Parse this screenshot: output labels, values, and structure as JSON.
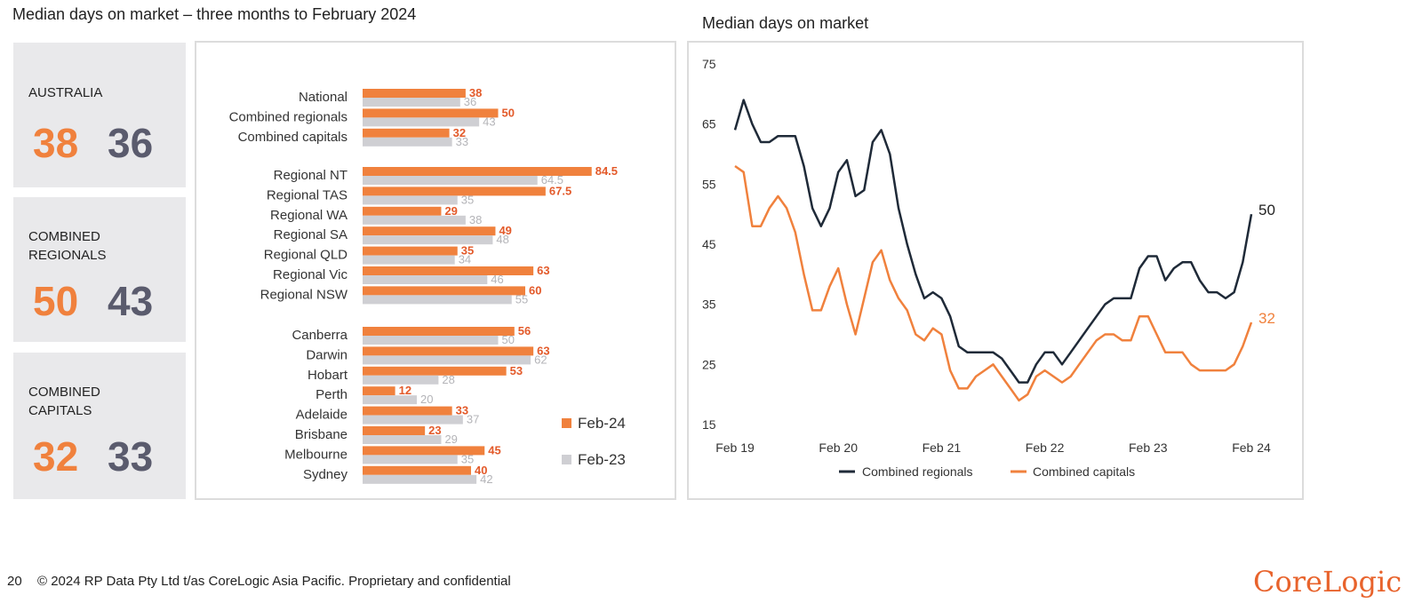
{
  "page": {
    "title": "Median days on market – three months to February 2024",
    "footer_page_number": "20",
    "footer_copyright": "© 2024 RP Data Pty Ltd t/as CoreLogic Asia Pacific. Proprietary and confidential",
    "logo_text": "CoreLogic"
  },
  "colors": {
    "feb24": "#f0813d",
    "feb23": "#cfcfd3",
    "regional_line": "#1f2a38",
    "capitals_line": "#f0813d",
    "prev_text": "#5a5b6d"
  },
  "kpis": [
    {
      "label": "AUSTRALIA",
      "current": "38",
      "previous": "36"
    },
    {
      "label": "COMBINED\nREGIONALS",
      "current": "50",
      "previous": "43"
    },
    {
      "label": "COMBINED\nCAPITALS",
      "current": "32",
      "previous": "33"
    }
  ],
  "chart_data": [
    {
      "type": "bar",
      "orientation": "horizontal",
      "title": "Median days on market – three months to February 2024",
      "categories": [
        "National",
        "Combined regionals",
        "Combined capitals",
        "Regional NT",
        "Regional TAS",
        "Regional WA",
        "Regional SA",
        "Regional QLD",
        "Regional Vic",
        "Regional NSW",
        "Canberra",
        "Darwin",
        "Hobart",
        "Perth",
        "Adelaide",
        "Brisbane",
        "Melbourne",
        "Sydney"
      ],
      "groups": [
        3,
        7,
        8
      ],
      "series": [
        {
          "name": "Feb-24",
          "values": [
            38,
            50,
            32,
            84.5,
            67.5,
            29,
            49,
            35,
            63,
            60,
            56,
            63,
            53,
            12,
            33,
            23,
            45,
            40
          ],
          "labels": [
            "38",
            "50",
            "32",
            "84.5",
            "67.5",
            "29",
            "49",
            "35",
            "63",
            "60",
            "56",
            "63",
            "53",
            "12",
            "33",
            "23",
            "45",
            "40"
          ]
        },
        {
          "name": "Feb-23",
          "values": [
            36,
            43,
            33,
            64.5,
            35,
            38,
            48,
            34,
            46,
            55,
            50,
            62,
            28,
            20,
            37,
            29,
            35,
            42
          ],
          "labels": [
            "36",
            "43",
            "33",
            "64.5",
            "35",
            "38",
            "48",
            "34",
            "46",
            "55",
            "50",
            "62",
            "28",
            "20",
            "37",
            "29",
            "35",
            "42"
          ]
        }
      ],
      "xlim": [
        0,
        90
      ],
      "legend": "bottom-right"
    },
    {
      "type": "line",
      "title": "Median days on market",
      "x_tick_labels": [
        "Feb 19",
        "Feb 20",
        "Feb 21",
        "Feb 22",
        "Feb 23",
        "Feb 24"
      ],
      "x_tick_months": [
        0,
        12,
        24,
        36,
        48,
        60
      ],
      "y_ticks": [
        75,
        65,
        55,
        45,
        35,
        25,
        15
      ],
      "ylim": [
        15,
        75
      ],
      "series": [
        {
          "name": "Combined regionals",
          "end_label": "50",
          "values": [
            64,
            69,
            65,
            62,
            62,
            63,
            63,
            63,
            58,
            51,
            48,
            51,
            57,
            59,
            53,
            54,
            62,
            64,
            60,
            51,
            45,
            40,
            36,
            37,
            36,
            33,
            28,
            27,
            27,
            27,
            27,
            26,
            24,
            22,
            22,
            25,
            27,
            27,
            25,
            27,
            29,
            31,
            33,
            35,
            36,
            36,
            36,
            41,
            43,
            43,
            39,
            41,
            42,
            42,
            39,
            37,
            37,
            36,
            37,
            42,
            50
          ]
        },
        {
          "name": "Combined capitals",
          "end_label": "32",
          "values": [
            58,
            57,
            48,
            48,
            51,
            53,
            51,
            47,
            40,
            34,
            34,
            38,
            41,
            35,
            30,
            36,
            42,
            44,
            39,
            36,
            34,
            30,
            29,
            31,
            30,
            24,
            21,
            21,
            23,
            24,
            25,
            23,
            21,
            19,
            20,
            23,
            24,
            23,
            22,
            23,
            25,
            27,
            29,
            30,
            30,
            29,
            29,
            33,
            33,
            30,
            27,
            27,
            27,
            25,
            24,
            24,
            24,
            24,
            25,
            28,
            32
          ]
        }
      ],
      "legend": "bottom"
    }
  ]
}
